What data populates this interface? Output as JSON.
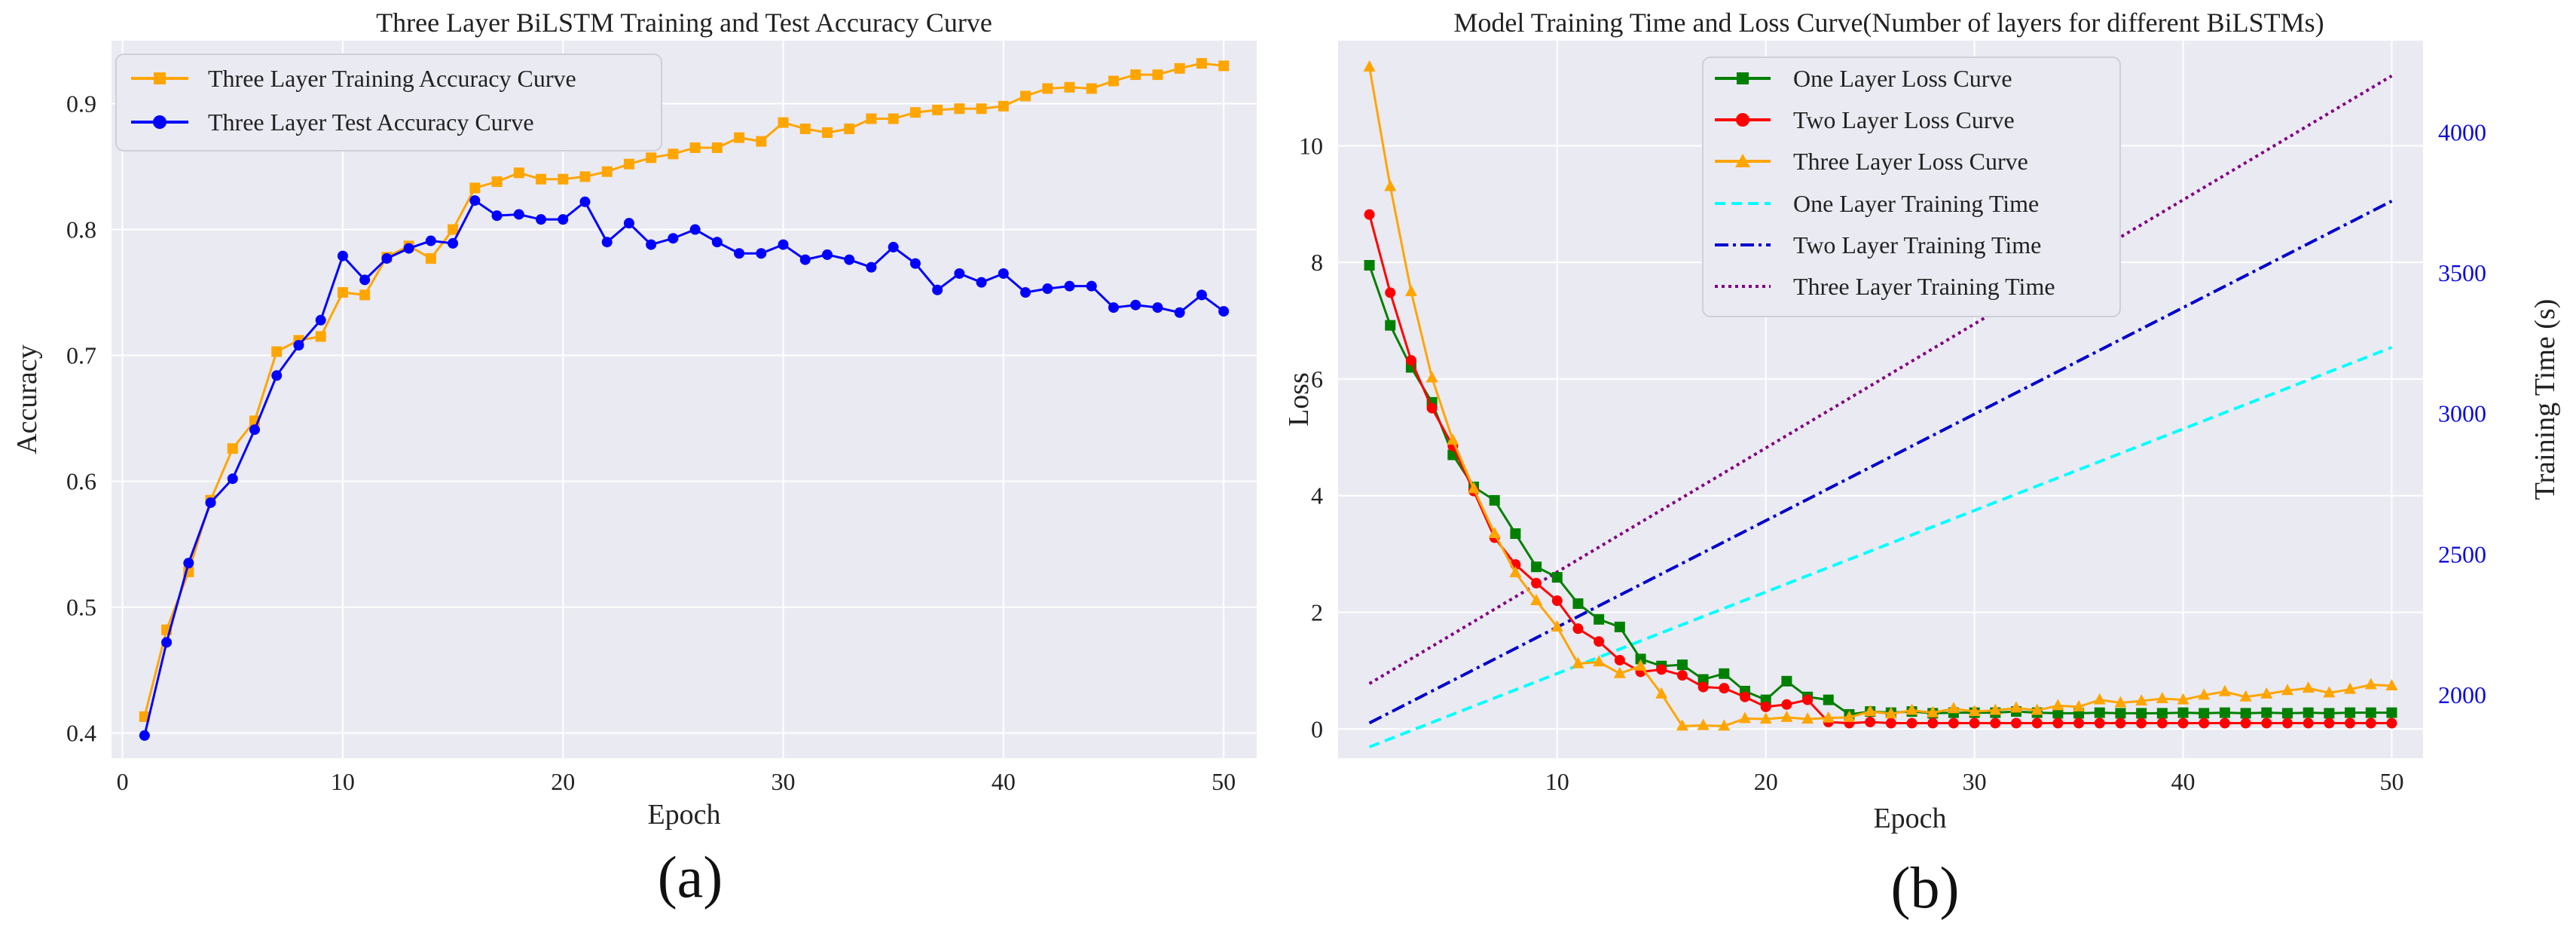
{
  "panel_labels": [
    "(a)",
    "(b)"
  ],
  "colors": {
    "plot_bg": "#eaeaf2",
    "grid": "#ffffff",
    "orange": "#ffa500",
    "blue": "#0000ff",
    "green": "#008000",
    "red": "#ff0000",
    "cyan": "#00ffff",
    "dark_blue": "#0000cd",
    "purple": "#800080",
    "right_axis": "#0a0ae0"
  },
  "chart_data": [
    {
      "type": "line",
      "title": "Three Layer BiLSTM Training and Test Accuracy Curve",
      "xlabel": "Epoch",
      "ylabel": "Accuracy",
      "xlim": [
        -0.5,
        51.5
      ],
      "ylim": [
        0.38,
        0.95
      ],
      "xticks": [
        0,
        10,
        20,
        30,
        40,
        50
      ],
      "yticks": [
        0.4,
        0.5,
        0.6,
        0.7,
        0.8,
        0.9
      ],
      "grid": true,
      "legend_position": "upper-left",
      "x": [
        1,
        2,
        3,
        4,
        5,
        6,
        7,
        8,
        9,
        10,
        11,
        12,
        13,
        14,
        15,
        16,
        17,
        18,
        19,
        20,
        21,
        22,
        23,
        24,
        25,
        26,
        27,
        28,
        29,
        30,
        31,
        32,
        33,
        34,
        35,
        36,
        37,
        38,
        39,
        40,
        41,
        42,
        43,
        44,
        45,
        46,
        47,
        48,
        49,
        50
      ],
      "series": [
        {
          "name": "Three Layer Training Accuracy Curve",
          "color": "#ffa500",
          "marker": "square",
          "values": [
            0.413,
            0.482,
            0.528,
            0.585,
            0.626,
            0.648,
            0.703,
            0.712,
            0.715,
            0.75,
            0.748,
            0.778,
            0.787,
            0.777,
            0.8,
            0.833,
            0.838,
            0.845,
            0.84,
            0.84,
            0.842,
            0.846,
            0.852,
            0.857,
            0.86,
            0.865,
            0.865,
            0.873,
            0.87,
            0.885,
            0.88,
            0.877,
            0.88,
            0.888,
            0.888,
            0.893,
            0.895,
            0.896,
            0.896,
            0.898,
            0.906,
            0.912,
            0.913,
            0.912,
            0.918,
            0.923,
            0.923,
            0.928,
            0.932,
            0.93
          ]
        },
        {
          "name": "Three Layer Test Accuracy Curve",
          "color": "#0000ff",
          "marker": "circle",
          "values": [
            0.398,
            0.472,
            0.535,
            0.583,
            0.602,
            0.641,
            0.684,
            0.708,
            0.728,
            0.779,
            0.76,
            0.777,
            0.785,
            0.791,
            0.789,
            0.823,
            0.811,
            0.812,
            0.808,
            0.808,
            0.822,
            0.79,
            0.805,
            0.788,
            0.793,
            0.8,
            0.79,
            0.781,
            0.781,
            0.788,
            0.776,
            0.78,
            0.776,
            0.77,
            0.786,
            0.773,
            0.752,
            0.765,
            0.758,
            0.765,
            0.75,
            0.753,
            0.755,
            0.755,
            0.738,
            0.74,
            0.738,
            0.734,
            0.748,
            0.735
          ]
        }
      ]
    },
    {
      "type": "line",
      "title": "Model Training Time and Loss Curve(Number of layers for different BiLSTMs)",
      "xlabel": "Epoch",
      "ylabel": "Loss",
      "y2label": "Training Time (s)",
      "xlim": [
        -0.5,
        51.5
      ],
      "ylim": [
        -0.5,
        11.8
      ],
      "y2lim": [
        1775,
        4325
      ],
      "xticks": [
        10,
        20,
        30,
        40,
        50
      ],
      "yticks": [
        0,
        2,
        4,
        6,
        8,
        10
      ],
      "y2ticks": [
        2000,
        2500,
        3000,
        3500,
        4000
      ],
      "grid": true,
      "legend_position": "top-center",
      "x": [
        1,
        2,
        3,
        4,
        5,
        6,
        7,
        8,
        9,
        10,
        11,
        12,
        13,
        14,
        15,
        16,
        17,
        18,
        19,
        20,
        21,
        22,
        23,
        24,
        25,
        26,
        27,
        28,
        29,
        30,
        31,
        32,
        33,
        34,
        35,
        36,
        37,
        38,
        39,
        40,
        41,
        42,
        43,
        44,
        45,
        46,
        47,
        48,
        49,
        50
      ],
      "series": [
        {
          "name": "One Layer Loss Curve",
          "color": "#008000",
          "marker": "square",
          "axis": "left",
          "values": [
            7.95,
            6.92,
            6.2,
            5.6,
            4.7,
            4.15,
            3.92,
            3.35,
            2.78,
            2.6,
            2.15,
            1.88,
            1.75,
            1.2,
            1.08,
            1.1,
            0.85,
            0.95,
            0.65,
            0.5,
            0.82,
            0.55,
            0.5,
            0.25,
            0.3,
            0.28,
            0.3,
            0.27,
            0.28,
            0.28,
            0.28,
            0.3,
            0.28,
            0.27,
            0.27,
            0.28,
            0.27,
            0.27,
            0.27,
            0.28,
            0.27,
            0.28,
            0.27,
            0.28,
            0.27,
            0.28,
            0.27,
            0.28,
            0.28,
            0.28
          ]
        },
        {
          "name": "Two Layer Loss Curve",
          "color": "#ff0000",
          "marker": "circle",
          "axis": "left",
          "values": [
            8.82,
            7.48,
            6.32,
            5.5,
            4.85,
            4.08,
            3.28,
            2.82,
            2.5,
            2.2,
            1.72,
            1.5,
            1.18,
            0.98,
            1.02,
            0.92,
            0.72,
            0.7,
            0.55,
            0.38,
            0.42,
            0.5,
            0.12,
            0.1,
            0.12,
            0.1,
            0.1,
            0.1,
            0.1,
            0.1,
            0.1,
            0.1,
            0.1,
            0.1,
            0.1,
            0.1,
            0.1,
            0.1,
            0.1,
            0.1,
            0.1,
            0.1,
            0.1,
            0.1,
            0.1,
            0.1,
            0.1,
            0.1,
            0.1,
            0.1
          ]
        },
        {
          "name": "Three Layer Loss Curve",
          "color": "#ffa500",
          "marker": "triangle",
          "axis": "left",
          "values": [
            11.35,
            9.3,
            7.5,
            6.02,
            4.95,
            4.12,
            3.35,
            2.68,
            2.2,
            1.75,
            1.12,
            1.15,
            0.95,
            1.08,
            0.6,
            0.05,
            0.06,
            0.05,
            0.18,
            0.17,
            0.2,
            0.17,
            0.19,
            0.2,
            0.3,
            0.26,
            0.32,
            0.28,
            0.35,
            0.3,
            0.32,
            0.36,
            0.32,
            0.4,
            0.38,
            0.5,
            0.45,
            0.48,
            0.52,
            0.5,
            0.58,
            0.64,
            0.55,
            0.6,
            0.66,
            0.7,
            0.62,
            0.68,
            0.76,
            0.74
          ]
        },
        {
          "name": "One Layer Training Time",
          "color": "#00ffff",
          "dash": "dashed",
          "axis": "right",
          "x_range": [
            1,
            50
          ],
          "values_range": [
            1815,
            3235
          ]
        },
        {
          "name": "Two Layer Training Time",
          "color": "#0000cd",
          "dash": "dashdot",
          "axis": "right",
          "x_range": [
            1,
            50
          ],
          "values_range": [
            1900,
            3755
          ]
        },
        {
          "name": "Three Layer Training Time",
          "color": "#800080",
          "dash": "dotted",
          "axis": "right",
          "x_range": [
            1,
            50
          ],
          "values_range": [
            2040,
            4200
          ]
        }
      ]
    }
  ]
}
